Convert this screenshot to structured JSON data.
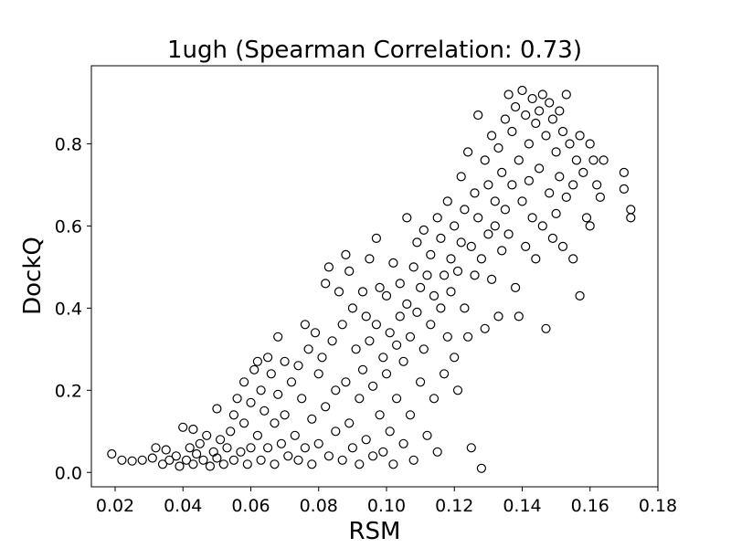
{
  "chart_data": {
    "type": "scatter",
    "title": "1ugh (Spearman Correlation: 0.73)",
    "xlabel": "RSM",
    "ylabel": "DockQ",
    "xlim": [
      0.013,
      0.18
    ],
    "ylim": [
      -0.035,
      0.99
    ],
    "xticks": [
      0.02,
      0.04,
      0.06,
      0.08,
      0.1,
      0.12,
      0.14,
      0.16,
      0.18
    ],
    "xtick_labels": [
      "0.02",
      "0.04",
      "0.06",
      "0.08",
      "0.10",
      "0.12",
      "0.14",
      "0.16",
      "0.18"
    ],
    "yticks": [
      0.0,
      0.2,
      0.4,
      0.6,
      0.8
    ],
    "ytick_labels": [
      "0.0",
      "0.2",
      "0.4",
      "0.6",
      "0.8"
    ],
    "grid": false,
    "marker": "open-circle",
    "marker_color": "#000000",
    "series": [
      {
        "points": [
          [
            0.019,
            0.045
          ],
          [
            0.022,
            0.03
          ],
          [
            0.025,
            0.028
          ],
          [
            0.028,
            0.03
          ],
          [
            0.031,
            0.035
          ],
          [
            0.032,
            0.06
          ],
          [
            0.034,
            0.02
          ],
          [
            0.035,
            0.055
          ],
          [
            0.036,
            0.03
          ],
          [
            0.038,
            0.04
          ],
          [
            0.039,
            0.015
          ],
          [
            0.04,
            0.11
          ],
          [
            0.041,
            0.03
          ],
          [
            0.042,
            0.06
          ],
          [
            0.043,
            0.105
          ],
          [
            0.043,
            0.02
          ],
          [
            0.044,
            0.045
          ],
          [
            0.045,
            0.07
          ],
          [
            0.046,
            0.03
          ],
          [
            0.047,
            0.09
          ],
          [
            0.048,
            0.015
          ],
          [
            0.049,
            0.05
          ],
          [
            0.05,
            0.155
          ],
          [
            0.05,
            0.035
          ],
          [
            0.051,
            0.08
          ],
          [
            0.052,
            0.02
          ],
          [
            0.053,
            0.06
          ],
          [
            0.054,
            0.1
          ],
          [
            0.055,
            0.14
          ],
          [
            0.055,
            0.03
          ],
          [
            0.056,
            0.18
          ],
          [
            0.057,
            0.05
          ],
          [
            0.058,
            0.22
          ],
          [
            0.058,
            0.12
          ],
          [
            0.059,
            0.02
          ],
          [
            0.06,
            0.17
          ],
          [
            0.06,
            0.06
          ],
          [
            0.061,
            0.25
          ],
          [
            0.062,
            0.27
          ],
          [
            0.062,
            0.09
          ],
          [
            0.063,
            0.2
          ],
          [
            0.063,
            0.03
          ],
          [
            0.064,
            0.15
          ],
          [
            0.065,
            0.28
          ],
          [
            0.065,
            0.06
          ],
          [
            0.066,
            0.24
          ],
          [
            0.067,
            0.12
          ],
          [
            0.067,
            0.02
          ],
          [
            0.068,
            0.33
          ],
          [
            0.068,
            0.19
          ],
          [
            0.069,
            0.07
          ],
          [
            0.07,
            0.27
          ],
          [
            0.07,
            0.14
          ],
          [
            0.071,
            0.04
          ],
          [
            0.072,
            0.22
          ],
          [
            0.073,
            0.09
          ],
          [
            0.074,
            0.26
          ],
          [
            0.074,
            0.03
          ],
          [
            0.075,
            0.18
          ],
          [
            0.076,
            0.36
          ],
          [
            0.076,
            0.06
          ],
          [
            0.077,
            0.3
          ],
          [
            0.078,
            0.13
          ],
          [
            0.078,
            0.02
          ],
          [
            0.079,
            0.34
          ],
          [
            0.08,
            0.24
          ],
          [
            0.08,
            0.07
          ],
          [
            0.081,
            0.28
          ],
          [
            0.082,
            0.46
          ],
          [
            0.082,
            0.16
          ],
          [
            0.083,
            0.5
          ],
          [
            0.083,
            0.04
          ],
          [
            0.084,
            0.32
          ],
          [
            0.085,
            0.2
          ],
          [
            0.085,
            0.1
          ],
          [
            0.086,
            0.44
          ],
          [
            0.087,
            0.36
          ],
          [
            0.087,
            0.03
          ],
          [
            0.088,
            0.53
          ],
          [
            0.088,
            0.22
          ],
          [
            0.089,
            0.49
          ],
          [
            0.089,
            0.12
          ],
          [
            0.09,
            0.4
          ],
          [
            0.09,
            0.06
          ],
          [
            0.091,
            0.3
          ],
          [
            0.092,
            0.18
          ],
          [
            0.092,
            0.02
          ],
          [
            0.093,
            0.44
          ],
          [
            0.093,
            0.25
          ],
          [
            0.094,
            0.38
          ],
          [
            0.094,
            0.08
          ],
          [
            0.095,
            0.52
          ],
          [
            0.095,
            0.32
          ],
          [
            0.096,
            0.21
          ],
          [
            0.096,
            0.04
          ],
          [
            0.097,
            0.57
          ],
          [
            0.097,
            0.36
          ],
          [
            0.098,
            0.45
          ],
          [
            0.098,
            0.14
          ],
          [
            0.099,
            0.28
          ],
          [
            0.099,
            0.05
          ],
          [
            0.1,
            0.43
          ],
          [
            0.1,
            0.24
          ],
          [
            0.101,
            0.34
          ],
          [
            0.101,
            0.1
          ],
          [
            0.102,
            0.51
          ],
          [
            0.102,
            0.02
          ],
          [
            0.103,
            0.31
          ],
          [
            0.103,
            0.18
          ],
          [
            0.104,
            0.46
          ],
          [
            0.104,
            0.38
          ],
          [
            0.105,
            0.27
          ],
          [
            0.105,
            0.07
          ],
          [
            0.106,
            0.62
          ],
          [
            0.106,
            0.41
          ],
          [
            0.107,
            0.33
          ],
          [
            0.107,
            0.14
          ],
          [
            0.108,
            0.5
          ],
          [
            0.108,
            0.03
          ],
          [
            0.109,
            0.56
          ],
          [
            0.109,
            0.39
          ],
          [
            0.11,
            0.45
          ],
          [
            0.11,
            0.22
          ],
          [
            0.111,
            0.59
          ],
          [
            0.111,
            0.3
          ],
          [
            0.112,
            0.48
          ],
          [
            0.112,
            0.09
          ],
          [
            0.113,
            0.53
          ],
          [
            0.113,
            0.36
          ],
          [
            0.114,
            0.43
          ],
          [
            0.114,
            0.18
          ],
          [
            0.115,
            0.62
          ],
          [
            0.115,
            0.05
          ],
          [
            0.116,
            0.57
          ],
          [
            0.116,
            0.4
          ],
          [
            0.117,
            0.48
          ],
          [
            0.117,
            0.24
          ],
          [
            0.118,
            0.66
          ],
          [
            0.118,
            0.33
          ],
          [
            0.119,
            0.52
          ],
          [
            0.119,
            0.44
          ],
          [
            0.12,
            0.6
          ],
          [
            0.12,
            0.28
          ],
          [
            0.121,
            0.49
          ],
          [
            0.121,
            0.2
          ],
          [
            0.122,
            0.72
          ],
          [
            0.122,
            0.56
          ],
          [
            0.123,
            0.64
          ],
          [
            0.123,
            0.4
          ],
          [
            0.124,
            0.78
          ],
          [
            0.124,
            0.33
          ],
          [
            0.125,
            0.55
          ],
          [
            0.125,
            0.06
          ],
          [
            0.126,
            0.68
          ],
          [
            0.126,
            0.48
          ],
          [
            0.127,
            0.87
          ],
          [
            0.127,
            0.62
          ],
          [
            0.128,
            0.52
          ],
          [
            0.128,
            0.01
          ],
          [
            0.129,
            0.76
          ],
          [
            0.129,
            0.35
          ],
          [
            0.13,
            0.7
          ],
          [
            0.13,
            0.58
          ],
          [
            0.131,
            0.82
          ],
          [
            0.131,
            0.47
          ],
          [
            0.132,
            0.66
          ],
          [
            0.132,
            0.6
          ],
          [
            0.133,
            0.79
          ],
          [
            0.133,
            0.38
          ],
          [
            0.134,
            0.73
          ],
          [
            0.134,
            0.54
          ],
          [
            0.135,
            0.86
          ],
          [
            0.135,
            0.64
          ],
          [
            0.136,
            0.92
          ],
          [
            0.136,
            0.58
          ],
          [
            0.137,
            0.83
          ],
          [
            0.137,
            0.7
          ],
          [
            0.138,
            0.89
          ],
          [
            0.138,
            0.45
          ],
          [
            0.139,
            0.76
          ],
          [
            0.139,
            0.38
          ],
          [
            0.14,
            0.93
          ],
          [
            0.14,
            0.66
          ],
          [
            0.141,
            0.87
          ],
          [
            0.141,
            0.55
          ],
          [
            0.142,
            0.8
          ],
          [
            0.142,
            0.71
          ],
          [
            0.143,
            0.91
          ],
          [
            0.143,
            0.62
          ],
          [
            0.144,
            0.85
          ],
          [
            0.144,
            0.52
          ],
          [
            0.145,
            0.88
          ],
          [
            0.145,
            0.74
          ],
          [
            0.146,
            0.92
          ],
          [
            0.146,
            0.6
          ],
          [
            0.147,
            0.82
          ],
          [
            0.147,
            0.35
          ],
          [
            0.148,
            0.9
          ],
          [
            0.148,
            0.68
          ],
          [
            0.149,
            0.86
          ],
          [
            0.149,
            0.57
          ],
          [
            0.15,
            0.78
          ],
          [
            0.15,
            0.63
          ],
          [
            0.151,
            0.88
          ],
          [
            0.151,
            0.72
          ],
          [
            0.152,
            0.83
          ],
          [
            0.152,
            0.55
          ],
          [
            0.153,
            0.92
          ],
          [
            0.153,
            0.67
          ],
          [
            0.154,
            0.8
          ],
          [
            0.155,
            0.7
          ],
          [
            0.155,
            0.52
          ],
          [
            0.156,
            0.76
          ],
          [
            0.157,
            0.82
          ],
          [
            0.157,
            0.43
          ],
          [
            0.158,
            0.73
          ],
          [
            0.159,
            0.62
          ],
          [
            0.16,
            0.8
          ],
          [
            0.16,
            0.6
          ],
          [
            0.161,
            0.76
          ],
          [
            0.162,
            0.7
          ],
          [
            0.163,
            0.67
          ],
          [
            0.164,
            0.76
          ],
          [
            0.17,
            0.73
          ],
          [
            0.17,
            0.69
          ],
          [
            0.172,
            0.64
          ],
          [
            0.172,
            0.62
          ]
        ]
      }
    ]
  }
}
